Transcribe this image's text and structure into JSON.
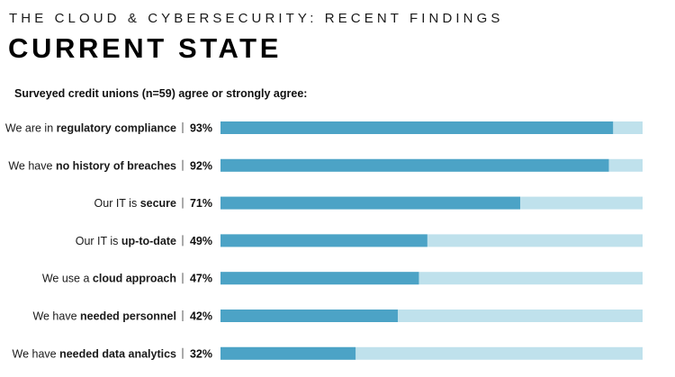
{
  "header": {
    "kicker": "THE CLOUD & CYBERSECURITY: RECENT FINDINGS",
    "title": "CURRENT STATE"
  },
  "colors": {
    "bar_fill": "#4ca3c6",
    "bar_track": "#bfe1ec"
  },
  "chart_data": {
    "type": "bar",
    "orientation": "horizontal",
    "title": "Surveyed credit unions (n=59) agree or strongly agree:",
    "xlim": [
      0,
      100
    ],
    "grid": false,
    "categories": [
      {
        "prefix": "We are in ",
        "emphasis": "regulatory compliance"
      },
      {
        "prefix": "We have ",
        "emphasis": "no history of breaches"
      },
      {
        "prefix": "Our IT is ",
        "emphasis": "secure"
      },
      {
        "prefix": "Our IT is ",
        "emphasis": "up-to-date"
      },
      {
        "prefix": "We use a ",
        "emphasis": "cloud approach"
      },
      {
        "prefix": "We have ",
        "emphasis": "needed personnel"
      },
      {
        "prefix": "We have ",
        "emphasis": "needed data analytics"
      }
    ],
    "values": [
      93,
      92,
      71,
      49,
      47,
      42,
      32
    ],
    "value_labels": [
      "93%",
      "92%",
      "71%",
      "49%",
      "47%",
      "42%",
      "32%"
    ]
  }
}
